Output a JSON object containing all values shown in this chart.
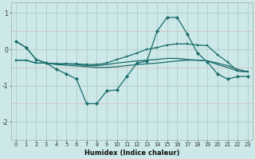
{
  "xlabel": "Humidex (Indice chaleur)",
  "bg_color": "#cce8e8",
  "grid_color": "#b0d0d0",
  "line_color": "#1a6b6b",
  "xlim": [
    -0.5,
    23.5
  ],
  "ylim": [
    -2.5,
    1.3
  ],
  "x": [
    0,
    1,
    2,
    3,
    4,
    5,
    6,
    7,
    8,
    9,
    10,
    11,
    12,
    13,
    14,
    15,
    16,
    17,
    18,
    19,
    20,
    21,
    22,
    23
  ],
  "line_wavy": [
    0.22,
    0.05,
    -0.28,
    -0.38,
    -0.55,
    -0.68,
    -0.82,
    -1.5,
    -1.5,
    -1.15,
    -1.12,
    -0.75,
    -0.38,
    -0.32,
    0.5,
    0.88,
    0.88,
    0.42,
    -0.1,
    -0.35,
    -0.68,
    -0.82,
    -0.75,
    -0.75
  ],
  "line_flat1": [
    -0.3,
    -0.3,
    -0.38,
    -0.38,
    -0.4,
    -0.4,
    -0.4,
    -0.42,
    -0.42,
    -0.38,
    -0.28,
    -0.2,
    -0.1,
    0.0,
    0.05,
    0.12,
    0.15,
    0.15,
    0.12,
    0.1,
    -0.15,
    -0.35,
    -0.6,
    -0.62
  ],
  "line_flat2": [
    -0.3,
    -0.3,
    -0.38,
    -0.38,
    -0.4,
    -0.4,
    -0.42,
    -0.45,
    -0.45,
    -0.42,
    -0.38,
    -0.35,
    -0.32,
    -0.3,
    -0.28,
    -0.25,
    -0.25,
    -0.28,
    -0.3,
    -0.32,
    -0.42,
    -0.5,
    -0.6,
    -0.62
  ],
  "line_diagonal": [
    0.22,
    0.05,
    -0.28,
    -0.38,
    -0.42,
    -0.44,
    -0.46,
    -0.48,
    -0.5,
    -0.5,
    -0.48,
    -0.45,
    -0.42,
    -0.4,
    -0.38,
    -0.35,
    -0.32,
    -0.3,
    -0.3,
    -0.32,
    -0.38,
    -0.45,
    -0.55,
    -0.62
  ],
  "yticks": [
    -2,
    -1,
    0,
    1
  ],
  "xticks": [
    0,
    1,
    2,
    3,
    4,
    5,
    6,
    7,
    8,
    9,
    10,
    11,
    12,
    13,
    14,
    15,
    16,
    17,
    18,
    19,
    20,
    21,
    22,
    23
  ]
}
